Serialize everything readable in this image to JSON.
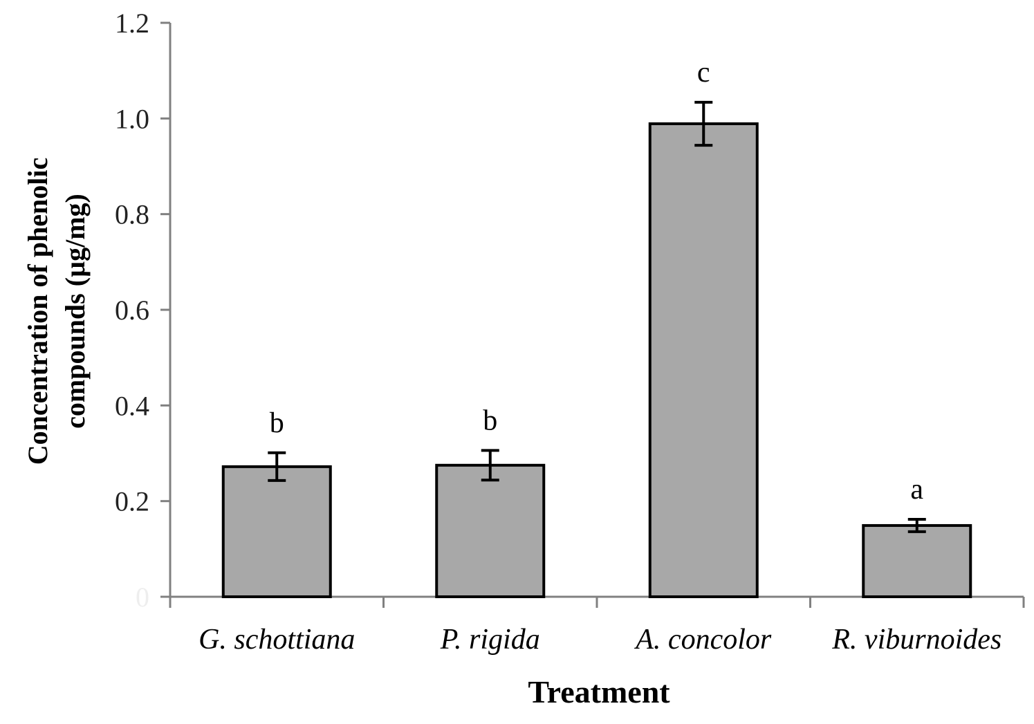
{
  "chart_data": {
    "type": "bar",
    "title": "",
    "xlabel": "Treatment",
    "ylabel_lines": [
      "Concentration of phenolic",
      "compounds (µg/mg)"
    ],
    "categories": [
      "G. schottiana",
      "P. rigida",
      "A. concolor",
      "R. viburnoides"
    ],
    "values": [
      0.272,
      0.275,
      0.989,
      0.149
    ],
    "errors": [
      0.029,
      0.031,
      0.045,
      0.013
    ],
    "significance_letters": [
      "b",
      "b",
      "c",
      "a"
    ],
    "ylim": [
      0,
      1.2
    ],
    "yticks": [
      0,
      0.2,
      0.4,
      0.6,
      0.8,
      1.0,
      1.2
    ],
    "ytick_labels": [
      "0",
      "0.2",
      "0.4",
      "0.6",
      "0.8",
      "1.0",
      "1.2"
    ],
    "grid": false,
    "colors": {
      "bar_fill": "#a8a8a8",
      "bar_edge": "#000000",
      "axis": "#808080"
    }
  }
}
